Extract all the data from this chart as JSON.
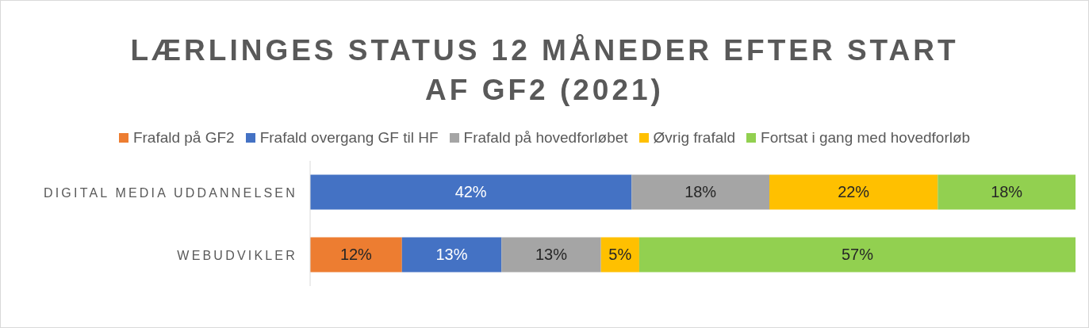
{
  "chart_data": {
    "type": "bar",
    "title": "LÆRLINGES STATUS 12 MÅNEDER EFTER START AF GF2 (2021)",
    "orientation": "horizontal",
    "stacked": true,
    "categories": [
      "DIGITAL MEDIA UDDANNELSEN",
      "WEBUDVIKLER"
    ],
    "series": [
      {
        "name": "Frafald på GF2",
        "color": "#ed7d31",
        "values": [
          0,
          12
        ],
        "value_labels": [
          null,
          "12%"
        ]
      },
      {
        "name": "Frafald overgang GF til HF",
        "color": "#4472c4",
        "values": [
          42,
          13
        ],
        "value_labels": [
          "42%",
          "13%"
        ]
      },
      {
        "name": "Frafald på hovedforløbet",
        "color": "#a5a5a5",
        "values": [
          18,
          13
        ],
        "value_labels": [
          "18%",
          "13%"
        ]
      },
      {
        "name": "Øvrig frafald",
        "color": "#ffc000",
        "values": [
          22,
          5
        ],
        "value_labels": [
          "22%",
          "5%"
        ]
      },
      {
        "name": "Fortsat i gang med hovedforløb",
        "color": "#92d050",
        "values": [
          18,
          57
        ],
        "value_labels": [
          "18%",
          "57%"
        ]
      }
    ],
    "xlim": [
      0,
      100
    ],
    "tick_labels": "y",
    "legend": "top",
    "grid": false
  }
}
